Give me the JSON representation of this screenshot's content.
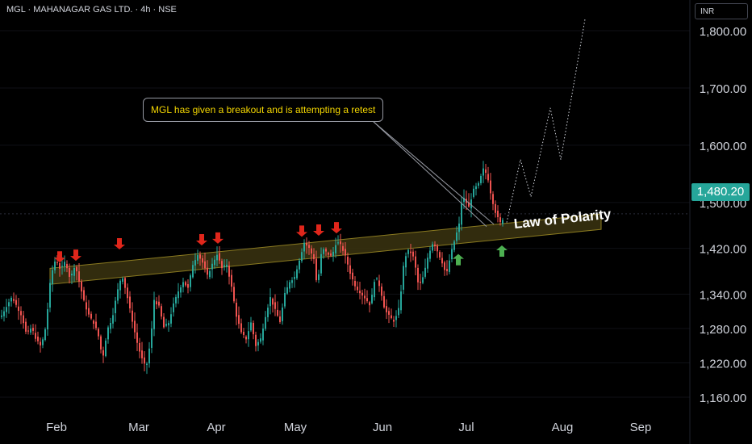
{
  "header": {
    "symbol_line": "MGL · MAHANAGAR GAS LTD. · 4h · NSE"
  },
  "currency_button": "INR",
  "current_price_label": "1,480.20",
  "annotations": {
    "callout_text": "MGL has given a breakout and is attempting a retest",
    "pattern_label": "Law of Polarity"
  },
  "colors": {
    "background": "#000000",
    "up_candle": "#26a69a",
    "down_candle": "#ef5350",
    "zone_fill": "#3b3410",
    "zone_border": "#8a7a20",
    "sell_arrow": "#e0261b",
    "buy_arrow": "#4caf50",
    "callout_text": "#f5d700",
    "price_tag": "#26a69a"
  },
  "chart_data": {
    "type": "candlestick",
    "ylim": [
      1130,
      1860
    ],
    "yticks": [
      1160,
      1220,
      1280,
      1340,
      1420,
      1500,
      1600,
      1700,
      1800
    ],
    "ytick_labels": [
      "1,160.00",
      "1,220.00",
      "1,280.00",
      "1,340.00",
      "1,420.00",
      "1,500.00",
      "1,600.00",
      "1,700.00",
      "1,800.00"
    ],
    "xticks": [
      "Feb",
      "Mar",
      "Apr",
      "May",
      "Jun",
      "Jul",
      "Aug",
      "Sep"
    ],
    "last_price": 1480.2,
    "price_path": [
      [
        0,
        1300
      ],
      [
        8,
        1322
      ],
      [
        14,
        1335
      ],
      [
        20,
        1318
      ],
      [
        26,
        1302
      ],
      [
        32,
        1268
      ],
      [
        38,
        1282
      ],
      [
        44,
        1260
      ],
      [
        50,
        1248
      ],
      [
        56,
        1285
      ],
      [
        62,
        1372
      ],
      [
        68,
        1402
      ],
      [
        74,
        1382
      ],
      [
        80,
        1398
      ],
      [
        86,
        1366
      ],
      [
        92,
        1392
      ],
      [
        98,
        1356
      ],
      [
        104,
        1322
      ],
      [
        110,
        1300
      ],
      [
        116,
        1288
      ],
      [
        122,
        1262
      ],
      [
        126,
        1225
      ],
      [
        132,
        1278
      ],
      [
        138,
        1298
      ],
      [
        144,
        1342
      ],
      [
        150,
        1375
      ],
      [
        156,
        1340
      ],
      [
        162,
        1300
      ],
      [
        168,
        1260
      ],
      [
        174,
        1230
      ],
      [
        180,
        1210
      ],
      [
        186,
        1262
      ],
      [
        190,
        1330
      ],
      [
        196,
        1318
      ],
      [
        202,
        1282
      ],
      [
        208,
        1290
      ],
      [
        214,
        1322
      ],
      [
        220,
        1345
      ],
      [
        226,
        1362
      ],
      [
        232,
        1350
      ],
      [
        238,
        1392
      ],
      [
        244,
        1410
      ],
      [
        250,
        1395
      ],
      [
        256,
        1372
      ],
      [
        262,
        1392
      ],
      [
        268,
        1410
      ],
      [
        274,
        1385
      ],
      [
        280,
        1392
      ],
      [
        286,
        1352
      ],
      [
        292,
        1302
      ],
      [
        298,
        1272
      ],
      [
        304,
        1262
      ],
      [
        310,
        1290
      ],
      [
        316,
        1250
      ],
      [
        322,
        1262
      ],
      [
        328,
        1302
      ],
      [
        334,
        1334
      ],
      [
        340,
        1312
      ],
      [
        346,
        1292
      ],
      [
        352,
        1340
      ],
      [
        358,
        1362
      ],
      [
        364,
        1370
      ],
      [
        370,
        1400
      ],
      [
        376,
        1430
      ],
      [
        382,
        1420
      ],
      [
        388,
        1402
      ],
      [
        392,
        1352
      ],
      [
        398,
        1420
      ],
      [
        404,
        1412
      ],
      [
        410,
        1405
      ],
      [
        416,
        1432
      ],
      [
        422,
        1424
      ],
      [
        428,
        1402
      ],
      [
        434,
        1372
      ],
      [
        440,
        1352
      ],
      [
        446,
        1342
      ],
      [
        452,
        1332
      ],
      [
        458,
        1320
      ],
      [
        464,
        1372
      ],
      [
        470,
        1352
      ],
      [
        476,
        1312
      ],
      [
        482,
        1300
      ],
      [
        488,
        1292
      ],
      [
        494,
        1318
      ],
      [
        500,
        1402
      ],
      [
        506,
        1418
      ],
      [
        512,
        1402
      ],
      [
        518,
        1352
      ],
      [
        524,
        1372
      ],
      [
        530,
        1410
      ],
      [
        536,
        1432
      ],
      [
        542,
        1412
      ],
      [
        548,
        1392
      ],
      [
        552,
        1372
      ],
      [
        558,
        1412
      ],
      [
        564,
        1442
      ],
      [
        568,
        1462
      ],
      [
        572,
        1512
      ],
      [
        576,
        1502
      ],
      [
        580,
        1492
      ],
      [
        586,
        1522
      ],
      [
        592,
        1532
      ],
      [
        598,
        1558
      ],
      [
        603,
        1548
      ],
      [
        608,
        1510
      ],
      [
        614,
        1478
      ],
      [
        620,
        1462
      ],
      [
        624,
        1480
      ]
    ],
    "sell_arrow_points": [
      [
        74,
        1395
      ],
      [
        94,
        1398
      ],
      [
        148,
        1418
      ],
      [
        250,
        1425
      ],
      [
        270,
        1428
      ],
      [
        374,
        1440
      ],
      [
        395,
        1442
      ],
      [
        417,
        1446
      ]
    ],
    "buy_arrow_points": [
      [
        568,
        1410
      ],
      [
        622,
        1425
      ]
    ],
    "projection_path": [
      [
        628,
        1465
      ],
      [
        645,
        1575
      ],
      [
        658,
        1510
      ],
      [
        682,
        1665
      ],
      [
        695,
        1575
      ],
      [
        725,
        1820
      ]
    ],
    "zone_lines": {
      "upper": [
        [
          62,
          1385
        ],
        [
          745,
          1480
        ]
      ],
      "lower": [
        [
          62,
          1357
        ],
        [
          745,
          1453
        ]
      ]
    },
    "callout_pointer_targets": [
      [
        603,
        1458
      ],
      [
        612,
        1462
      ]
    ]
  }
}
